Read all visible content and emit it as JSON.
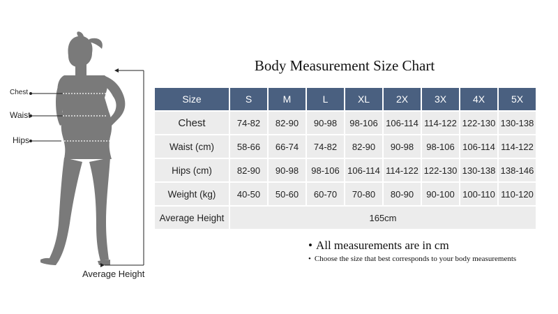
{
  "figure": {
    "labels": {
      "chest": "Chest",
      "waist": "Waist",
      "hips": "Hips",
      "height": "Average Height"
    }
  },
  "title": "Body Measurement Size Chart",
  "table": {
    "header": [
      "Size",
      "S",
      "M",
      "L",
      "XL",
      "2X",
      "3X",
      "4X",
      "5X"
    ],
    "rows": [
      {
        "label": "Chest",
        "values": [
          "74-82",
          "82-90",
          "90-98",
          "98-106",
          "106-114",
          "114-122",
          "122-130",
          "130-138"
        ]
      },
      {
        "label": "Waist (cm)",
        "values": [
          "58-66",
          "66-74",
          "74-82",
          "82-90",
          "90-98",
          "98-106",
          "106-114",
          "114-122"
        ]
      },
      {
        "label": "Hips (cm)",
        "values": [
          "82-90",
          "90-98",
          "98-106",
          "106-114",
          "114-122",
          "122-130",
          "130-138",
          "138-146"
        ]
      },
      {
        "label": "Weight (kg)",
        "values": [
          "40-50",
          "50-60",
          "60-70",
          "70-80",
          "80-90",
          "90-100",
          "100-110",
          "110-120"
        ]
      }
    ],
    "average_height": {
      "label": "Average Height",
      "value": "165cm"
    }
  },
  "notes": {
    "primary": "All measurements are in cm",
    "secondary": "Choose the size that best corresponds to your body measurements"
  },
  "colors": {
    "header_bg": "#4a6080",
    "cell_bg": "#ececec",
    "silhouette": "#7a7a7a"
  }
}
